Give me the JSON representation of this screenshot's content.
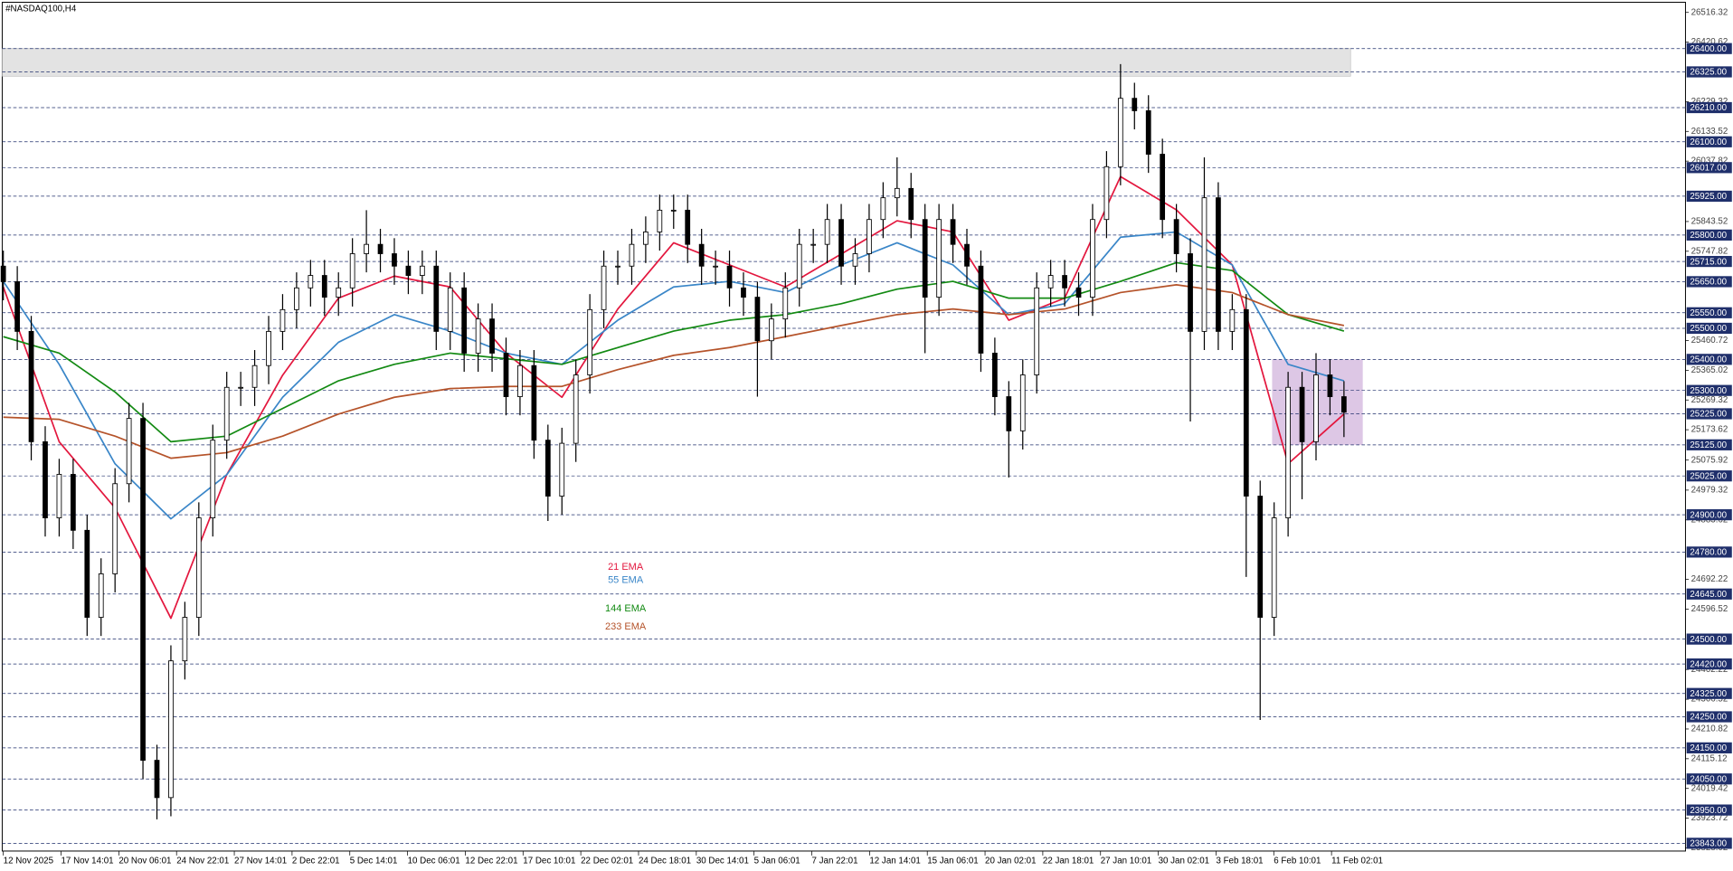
{
  "chart_data": {
    "type": "candlestick",
    "title": "#NASDAQ100,H4",
    "x_labels": [
      "12 Nov 2025",
      "17 Nov 14:01",
      "20 Nov 06:01",
      "24 Nov 22:01",
      "27 Nov 14:01",
      "2 Dec 22:01",
      "5 Dec 14:01",
      "10 Dec 06:01",
      "12 Dec 22:01",
      "17 Dec 10:01",
      "22 Dec 02:01",
      "24 Dec 18:01",
      "30 Dec 14:01",
      "5 Jan 06:01",
      "7 Jan 22:01",
      "12 Jan 14:01",
      "15 Jan 06:01",
      "20 Jan 02:01",
      "22 Jan 18:01",
      "27 Jan 10:01",
      "30 Jan 02:01",
      "3 Feb 18:01",
      "6 Feb 10:01",
      "11 Feb 02:01"
    ],
    "candles": {
      "open": [
        25700,
        25650,
        25490,
        25135,
        24890,
        25030,
        24850,
        24570,
        24710,
        25000,
        25210,
        24110,
        23990,
        24430,
        24570,
        24890,
        25140,
        25310,
        25310,
        25380,
        25490,
        25560,
        25630,
        25670,
        25600,
        25630,
        25740,
        25770,
        25740,
        25700,
        25670,
        25700,
        25490,
        25630,
        25420,
        25530,
        25420,
        25280,
        25380,
        25140,
        24960,
        25130,
        25350,
        25560,
        25700,
        25700,
        25770,
        25810,
        25880,
        25880,
        25770,
        25700,
        25700,
        25630,
        25600,
        25460,
        25530,
        25630,
        25770,
        25770,
        25850,
        25700,
        25740,
        25850,
        25920,
        25950,
        25850,
        25600,
        25850,
        25770,
        25700,
        25420,
        25280,
        25170,
        25350,
        25630,
        25670,
        25630,
        25600,
        25850,
        26020,
        26240,
        26200,
        26060,
        25850,
        25740,
        25490,
        25920,
        25490,
        25560,
        24960,
        24570,
        24890,
        25310,
        25135,
        25350,
        25280
      ],
      "high": [
        25750,
        25700,
        25540,
        25185,
        25080,
        25080,
        24900,
        24760,
        25050,
        25260,
        25260,
        24160,
        24480,
        24620,
        24940,
        25190,
        25360,
        25360,
        25430,
        25540,
        25610,
        25680,
        25720,
        25720,
        25680,
        25790,
        25880,
        25820,
        25790,
        25750,
        25750,
        25750,
        25680,
        25680,
        25580,
        25580,
        25470,
        25430,
        25430,
        25190,
        25180,
        25400,
        25610,
        25750,
        25750,
        25820,
        25860,
        25930,
        25930,
        25930,
        25820,
        25750,
        25750,
        25680,
        25650,
        25580,
        25680,
        25820,
        25820,
        25900,
        25900,
        25790,
        25900,
        25970,
        26050,
        26000,
        25900,
        25900,
        25900,
        25820,
        25750,
        25470,
        25330,
        25400,
        25680,
        25720,
        25720,
        25680,
        25900,
        26070,
        26350,
        26290,
        26250,
        26110,
        25900,
        25790,
        26050,
        25970,
        25610,
        25610,
        25010,
        24940,
        25360,
        25360,
        25420,
        25400,
        25330
      ],
      "low": [
        25590,
        25430,
        25075,
        24830,
        24830,
        24790,
        24510,
        24510,
        24650,
        24940,
        24050,
        23920,
        23930,
        24370,
        24510,
        24830,
        25080,
        25250,
        25250,
        25320,
        25430,
        25500,
        25570,
        25540,
        25540,
        25570,
        25680,
        25680,
        25640,
        25610,
        25610,
        25430,
        25430,
        25360,
        25360,
        25360,
        25220,
        25220,
        25080,
        24880,
        24900,
        25070,
        25290,
        25500,
        25640,
        25640,
        25710,
        25750,
        25820,
        25710,
        25640,
        25640,
        25570,
        25540,
        25280,
        25400,
        25470,
        25570,
        25710,
        25710,
        25640,
        25640,
        25680,
        25790,
        25860,
        25790,
        25420,
        25540,
        25710,
        25640,
        25360,
        25220,
        25020,
        25110,
        25290,
        25570,
        25570,
        25540,
        25540,
        25790,
        25960,
        26140,
        26000,
        25790,
        25680,
        25200,
        25430,
        25430,
        25430,
        24700,
        24240,
        24510,
        24830,
        24950,
        25075,
        25220,
        25150
      ],
      "close": [
        25650,
        25490,
        25135,
        24890,
        25030,
        24850,
        24570,
        24710,
        25000,
        25210,
        24110,
        23990,
        24430,
        24570,
        24890,
        25140,
        25310,
        25310,
        25380,
        25490,
        25560,
        25630,
        25670,
        25600,
        25630,
        25740,
        25770,
        25740,
        25700,
        25670,
        25700,
        25490,
        25630,
        25420,
        25530,
        25420,
        25280,
        25380,
        25140,
        24960,
        25130,
        25350,
        25560,
        25700,
        25700,
        25770,
        25810,
        25880,
        25880,
        25770,
        25700,
        25700,
        25630,
        25600,
        25460,
        25530,
        25630,
        25770,
        25770,
        25850,
        25700,
        25740,
        25850,
        25920,
        25950,
        25850,
        25600,
        25850,
        25770,
        25700,
        25420,
        25280,
        25170,
        25350,
        25630,
        25670,
        25630,
        25600,
        25850,
        26020,
        26240,
        26200,
        26060,
        25850,
        25740,
        25490,
        25920,
        25490,
        25560,
        24960,
        24570,
        24890,
        25310,
        25135,
        25350,
        25280,
        25230
      ]
    },
    "indicators": [
      {
        "name": "21 EMA",
        "color": "#e3173e",
        "values": [
          25633,
          25135,
          24922,
          24567,
          25029,
          25349,
          25597,
          25668,
          25633,
          25420,
          25278,
          25562,
          25775,
          25704,
          25633,
          25739,
          25846,
          25810,
          25526,
          25597,
          25988,
          25881,
          25704,
          25064,
          25224
        ]
      },
      {
        "name": "55 EMA",
        "color": "#3a86c8",
        "values": [
          25651,
          25384,
          25064,
          24887,
          25029,
          25278,
          25455,
          25544,
          25491,
          25420,
          25384,
          25526,
          25633,
          25651,
          25615,
          25704,
          25775,
          25704,
          25544,
          25579,
          25793,
          25810,
          25704,
          25384,
          25331
        ]
      },
      {
        "name": "144 EMA",
        "color": "#138a13",
        "values": [
          25473,
          25420,
          25295,
          25135,
          25153,
          25242,
          25331,
          25384,
          25420,
          25402,
          25384,
          25438,
          25491,
          25526,
          25544,
          25579,
          25626,
          25651,
          25597,
          25597,
          25651,
          25711,
          25686,
          25544,
          25491
        ]
      },
      {
        "name": "233 EMA",
        "color": "#b5532a",
        "values": [
          25214,
          25207,
          25153,
          25082,
          25100,
          25153,
          25224,
          25278,
          25306,
          25313,
          25313,
          25367,
          25413,
          25438,
          25473,
          25509,
          25544,
          25562,
          25544,
          25562,
          25615,
          25640,
          25615,
          25544,
          25509
        ]
      }
    ],
    "ylim": [
      23818,
      26549
    ],
    "yticks": [
      26516.32,
      26420.62,
      26229.32,
      26133.52,
      26037.82,
      25843.52,
      25747.82,
      25460.72,
      25365.02,
      25269.32,
      25173.62,
      25075.92,
      24979.32,
      24883.62,
      24692.22,
      24596.52,
      24402.22,
      24306.52,
      24210.82,
      24115.12,
      24019.42,
      23923.72,
      23828.02
    ],
    "levels": [
      {
        "value": 26400,
        "label": "26400.00"
      },
      {
        "value": 26325,
        "label": "26325.00"
      },
      {
        "value": 26210,
        "label": "26210.00"
      },
      {
        "value": 26100,
        "label": "26100.00"
      },
      {
        "value": 26017,
        "label": "26017.00"
      },
      {
        "value": 25925,
        "label": "25925.00"
      },
      {
        "value": 25800,
        "label": "25800.00"
      },
      {
        "value": 25715,
        "label": "25715.00"
      },
      {
        "value": 25650,
        "label": "25650.00"
      },
      {
        "value": 25550,
        "label": "25550.00"
      },
      {
        "value": 25500,
        "label": "25500.00"
      },
      {
        "value": 25400,
        "label": "25400.00"
      },
      {
        "value": 25300,
        "label": "25300.00"
      },
      {
        "value": 25225,
        "label": "25225.00"
      },
      {
        "value": 25125,
        "label": "25125.00"
      },
      {
        "value": 25025,
        "label": "25025.00"
      },
      {
        "value": 24900,
        "label": "24900.00"
      },
      {
        "value": 24780,
        "label": "24780.00"
      },
      {
        "value": 24645,
        "label": "24645.00"
      },
      {
        "value": 24500,
        "label": "24500.00"
      },
      {
        "value": 24420,
        "label": "24420.00"
      },
      {
        "value": 24325,
        "label": "24325.00"
      },
      {
        "value": 24250,
        "label": "24250.00"
      },
      {
        "value": 24150,
        "label": "24150.00"
      },
      {
        "value": 24050,
        "label": "24050.00"
      },
      {
        "value": 23950,
        "label": "23950.00"
      },
      {
        "value": 23843,
        "label": "23843.00"
      }
    ],
    "zones": [
      {
        "low": 26311,
        "high": 26400,
        "color": "#d9d9d9"
      },
      {
        "low": 25125,
        "high": 25400,
        "color": "#d2b4dc"
      }
    ],
    "level_color": "#1f2f6b",
    "bull_color": "#ffffff",
    "bear_color": "#000000"
  }
}
